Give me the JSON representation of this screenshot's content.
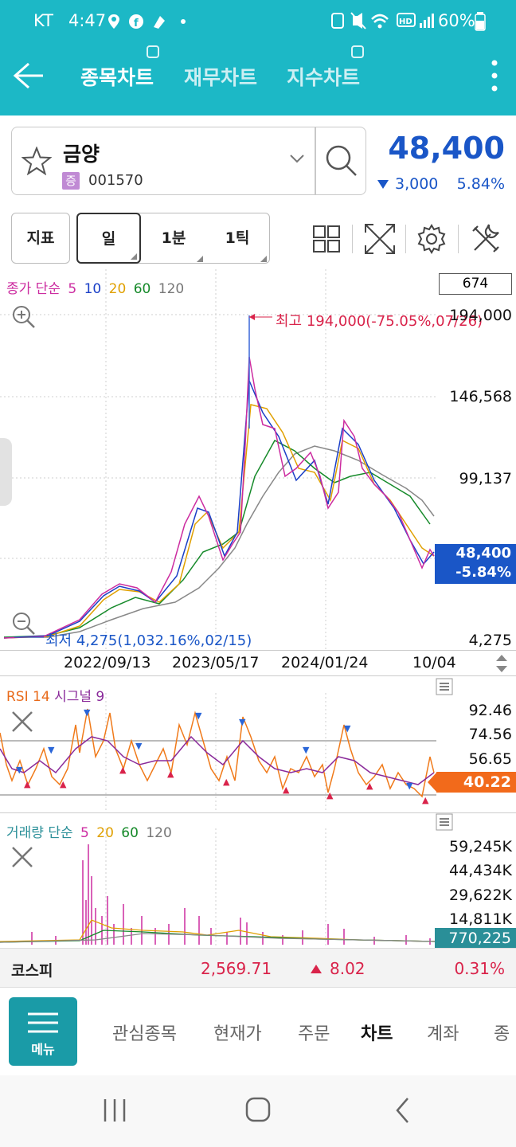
{
  "status_bar": {
    "carrier": "KT",
    "time": "4:47",
    "battery": "60%"
  },
  "tabs": [
    {
      "label": "종목차트",
      "active": true
    },
    {
      "label": "재무차트",
      "active": false
    },
    {
      "label": "지수차트",
      "active": false
    }
  ],
  "stock": {
    "name": "금양",
    "market_badge": "증",
    "code": "001570",
    "price": "48,400",
    "change": "3,000",
    "change_pct": "5.84%",
    "direction": "down"
  },
  "toolbar": {
    "indicator_btn": "지표",
    "period_btns": [
      "일",
      "1분",
      "1틱"
    ]
  },
  "main_chart": {
    "legend": {
      "label": "종가 단순",
      "ma": [
        "5",
        "10",
        "20",
        "60",
        "120"
      ]
    },
    "visible_count": "674",
    "y_labels": [
      "194,000",
      "146,568",
      "99,137",
      "4,275"
    ],
    "high_annotation": "최고 194,000(-75.05%,07/26)",
    "low_annotation": "최저 4,275(1,032.16%,02/15)",
    "current_price": "48,400",
    "current_pct": "-5.84%",
    "x_labels": [
      "2022/09/13",
      "2023/05/17",
      "2024/01/24",
      "10/04"
    ]
  },
  "rsi": {
    "legend_a": "RSI 14",
    "legend_b": "시그널 9",
    "y_labels": [
      "92.46",
      "74.56",
      "56.65"
    ],
    "current": "40.22"
  },
  "volume": {
    "legend": {
      "label": "거래량 단순",
      "ma": [
        "5",
        "20",
        "60",
        "120"
      ]
    },
    "y_labels": [
      "59,245K",
      "44,434K",
      "29,622K",
      "14,811K"
    ],
    "current": "770,225"
  },
  "index": {
    "name": "코스피",
    "value": "2,569.71",
    "change": "8.02",
    "change_pct": "0.31%"
  },
  "bottom_nav": {
    "menu": "메뉴",
    "items": [
      "관심종목",
      "현재가",
      "주문",
      "차트",
      "계좌",
      "종"
    ]
  },
  "colors": {
    "header": "#1cb8c6",
    "down": "#1a56c7",
    "up": "#d9234a",
    "rsi_badge": "#f26a1b",
    "vol_badge": "#2a8f98"
  }
}
